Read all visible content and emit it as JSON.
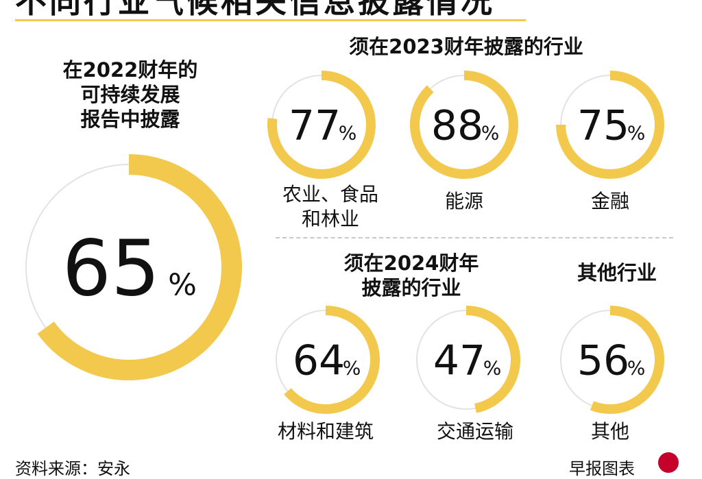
{
  "page": {
    "title": "不同行业气候相关信息披露情况",
    "source": "资料来源：安永",
    "credit": "早报图表"
  },
  "headings": {
    "main": "在2022财年的\n可持续发展\n报告中披露",
    "fy2023": "须在2023财年披露的行业",
    "fy2024": "须在2024财年\n披露的行业",
    "others": "其他行业"
  },
  "colors": {
    "accent": "#f2c94c",
    "track": "#e2e2e2",
    "text": "#111111"
  },
  "chart_data": {
    "type": "donut",
    "unit": "%",
    "items": [
      {
        "group": "main",
        "category": "",
        "value": 65
      },
      {
        "group": "fy2023",
        "category": "农业、食品\n和林业",
        "value": 77
      },
      {
        "group": "fy2023",
        "category": "能源",
        "value": 88
      },
      {
        "group": "fy2023",
        "category": "金融",
        "value": 75
      },
      {
        "group": "fy2024",
        "category": "材料和建筑",
        "value": 64
      },
      {
        "group": "fy2024",
        "category": "交通运输",
        "value": 47
      },
      {
        "group": "others",
        "category": "其他",
        "value": 56
      }
    ]
  }
}
